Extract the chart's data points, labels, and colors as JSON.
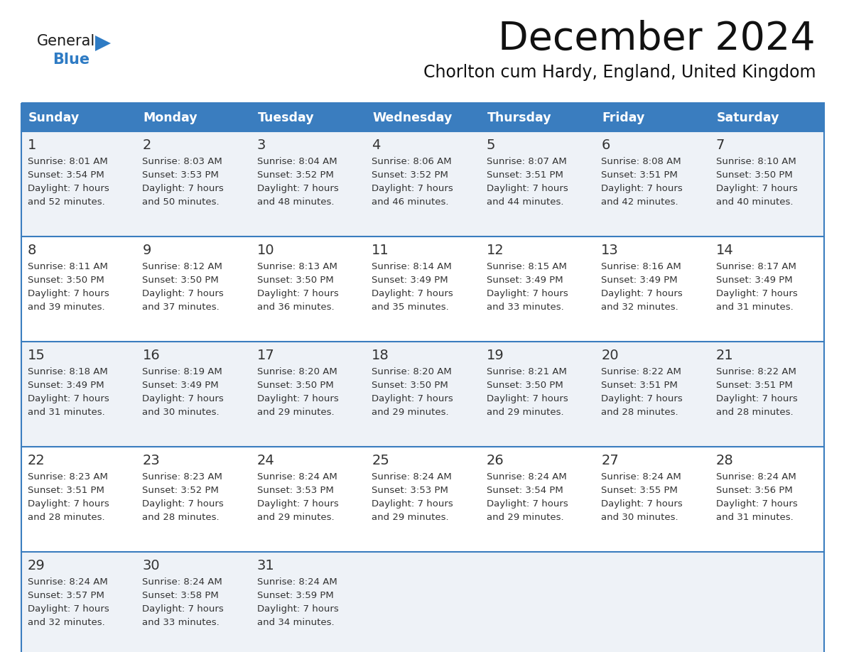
{
  "title": "December 2024",
  "subtitle": "Chorlton cum Hardy, England, United Kingdom",
  "days_of_week": [
    "Sunday",
    "Monday",
    "Tuesday",
    "Wednesday",
    "Thursday",
    "Friday",
    "Saturday"
  ],
  "header_bg_color": "#3a7dbf",
  "header_text_color": "#ffffff",
  "cell_bg_color_odd": "#eef2f7",
  "cell_bg_color_even": "#ffffff",
  "separator_color": "#3a7dbf",
  "text_color": "#333333",
  "title_color": "#111111",
  "subtitle_color": "#111111",
  "logo_general_color": "#1a1a1a",
  "logo_blue_color": "#2e7bc4",
  "calendar_data": [
    [
      {
        "day": 1,
        "sunrise": "8:01 AM",
        "sunset": "3:54 PM",
        "daylight": "7 hours and 52 minutes"
      },
      {
        "day": 2,
        "sunrise": "8:03 AM",
        "sunset": "3:53 PM",
        "daylight": "7 hours and 50 minutes"
      },
      {
        "day": 3,
        "sunrise": "8:04 AM",
        "sunset": "3:52 PM",
        "daylight": "7 hours and 48 minutes"
      },
      {
        "day": 4,
        "sunrise": "8:06 AM",
        "sunset": "3:52 PM",
        "daylight": "7 hours and 46 minutes"
      },
      {
        "day": 5,
        "sunrise": "8:07 AM",
        "sunset": "3:51 PM",
        "daylight": "7 hours and 44 minutes"
      },
      {
        "day": 6,
        "sunrise": "8:08 AM",
        "sunset": "3:51 PM",
        "daylight": "7 hours and 42 minutes"
      },
      {
        "day": 7,
        "sunrise": "8:10 AM",
        "sunset": "3:50 PM",
        "daylight": "7 hours and 40 minutes"
      }
    ],
    [
      {
        "day": 8,
        "sunrise": "8:11 AM",
        "sunset": "3:50 PM",
        "daylight": "7 hours and 39 minutes"
      },
      {
        "day": 9,
        "sunrise": "8:12 AM",
        "sunset": "3:50 PM",
        "daylight": "7 hours and 37 minutes"
      },
      {
        "day": 10,
        "sunrise": "8:13 AM",
        "sunset": "3:50 PM",
        "daylight": "7 hours and 36 minutes"
      },
      {
        "day": 11,
        "sunrise": "8:14 AM",
        "sunset": "3:49 PM",
        "daylight": "7 hours and 35 minutes"
      },
      {
        "day": 12,
        "sunrise": "8:15 AM",
        "sunset": "3:49 PM",
        "daylight": "7 hours and 33 minutes"
      },
      {
        "day": 13,
        "sunrise": "8:16 AM",
        "sunset": "3:49 PM",
        "daylight": "7 hours and 32 minutes"
      },
      {
        "day": 14,
        "sunrise": "8:17 AM",
        "sunset": "3:49 PM",
        "daylight": "7 hours and 31 minutes"
      }
    ],
    [
      {
        "day": 15,
        "sunrise": "8:18 AM",
        "sunset": "3:49 PM",
        "daylight": "7 hours and 31 minutes"
      },
      {
        "day": 16,
        "sunrise": "8:19 AM",
        "sunset": "3:49 PM",
        "daylight": "7 hours and 30 minutes"
      },
      {
        "day": 17,
        "sunrise": "8:20 AM",
        "sunset": "3:50 PM",
        "daylight": "7 hours and 29 minutes"
      },
      {
        "day": 18,
        "sunrise": "8:20 AM",
        "sunset": "3:50 PM",
        "daylight": "7 hours and 29 minutes"
      },
      {
        "day": 19,
        "sunrise": "8:21 AM",
        "sunset": "3:50 PM",
        "daylight": "7 hours and 29 minutes"
      },
      {
        "day": 20,
        "sunrise": "8:22 AM",
        "sunset": "3:51 PM",
        "daylight": "7 hours and 28 minutes"
      },
      {
        "day": 21,
        "sunrise": "8:22 AM",
        "sunset": "3:51 PM",
        "daylight": "7 hours and 28 minutes"
      }
    ],
    [
      {
        "day": 22,
        "sunrise": "8:23 AM",
        "sunset": "3:51 PM",
        "daylight": "7 hours and 28 minutes"
      },
      {
        "day": 23,
        "sunrise": "8:23 AM",
        "sunset": "3:52 PM",
        "daylight": "7 hours and 28 minutes"
      },
      {
        "day": 24,
        "sunrise": "8:24 AM",
        "sunset": "3:53 PM",
        "daylight": "7 hours and 29 minutes"
      },
      {
        "day": 25,
        "sunrise": "8:24 AM",
        "sunset": "3:53 PM",
        "daylight": "7 hours and 29 minutes"
      },
      {
        "day": 26,
        "sunrise": "8:24 AM",
        "sunset": "3:54 PM",
        "daylight": "7 hours and 29 minutes"
      },
      {
        "day": 27,
        "sunrise": "8:24 AM",
        "sunset": "3:55 PM",
        "daylight": "7 hours and 30 minutes"
      },
      {
        "day": 28,
        "sunrise": "8:24 AM",
        "sunset": "3:56 PM",
        "daylight": "7 hours and 31 minutes"
      }
    ],
    [
      {
        "day": 29,
        "sunrise": "8:24 AM",
        "sunset": "3:57 PM",
        "daylight": "7 hours and 32 minutes"
      },
      {
        "day": 30,
        "sunrise": "8:24 AM",
        "sunset": "3:58 PM",
        "daylight": "7 hours and 33 minutes"
      },
      {
        "day": 31,
        "sunrise": "8:24 AM",
        "sunset": "3:59 PM",
        "daylight": "7 hours and 34 minutes"
      },
      null,
      null,
      null,
      null
    ]
  ]
}
